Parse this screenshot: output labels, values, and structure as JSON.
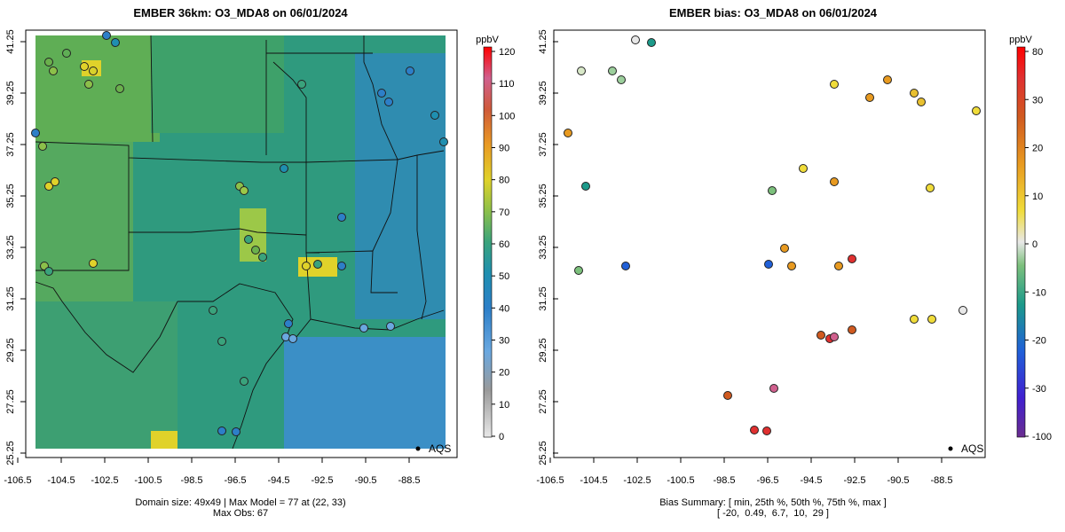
{
  "panels": [
    {
      "title": "EMBER 36km: O3_MDA8 on 06/01/2024",
      "colorbar_label": "ppbV",
      "colorbar_ticks": [
        "0",
        "10",
        "20",
        "30",
        "40",
        "50",
        "60",
        "70",
        "80",
        "90",
        "100",
        "110",
        "120"
      ],
      "legend_label": "AQS",
      "footer_lines": [
        "Domain size: 49x49 | Max Model = 77 at (22, 33)",
        "Max Obs: 67"
      ]
    },
    {
      "title": "EMBER bias: O3_MDA8 on 06/01/2024",
      "colorbar_label": "ppbV",
      "colorbar_ticks": [
        "-100",
        "-30",
        "-20",
        "-10",
        "0",
        "10",
        "20",
        "30",
        "80"
      ],
      "legend_label": "AQS",
      "footer_lines": [
        "Bias Summary: [ min, 25th %, 50th %, 75th %, max ]",
        "[ -20,  0.49,  6.7,  10,  29 ]"
      ]
    }
  ],
  "axes": {
    "x_ticks": [
      "-106.5",
      "-104.5",
      "-102.5",
      "-100.5",
      "-98.5",
      "-96.5",
      "-94.5",
      "-92.5",
      "-90.5",
      "-88.5"
    ],
    "y_ticks": [
      "41.25",
      "39.25",
      "37.25",
      "35.25",
      "33.25",
      "31.25",
      "29.25",
      "27.25",
      "25.25"
    ]
  },
  "colors": {
    "model_background": "#2f9a7e",
    "colorbar_top": "#ff0000",
    "colorbar_bottom": "#e8e8e8"
  },
  "stats": {
    "domain_size": "49x49",
    "max_model": 77,
    "max_model_cell": [
      22,
      33
    ],
    "max_obs": 67,
    "bias_summary": {
      "min": -20,
      "p25": 0.49,
      "p50": 6.7,
      "p75": 10,
      "max": 29
    }
  }
}
